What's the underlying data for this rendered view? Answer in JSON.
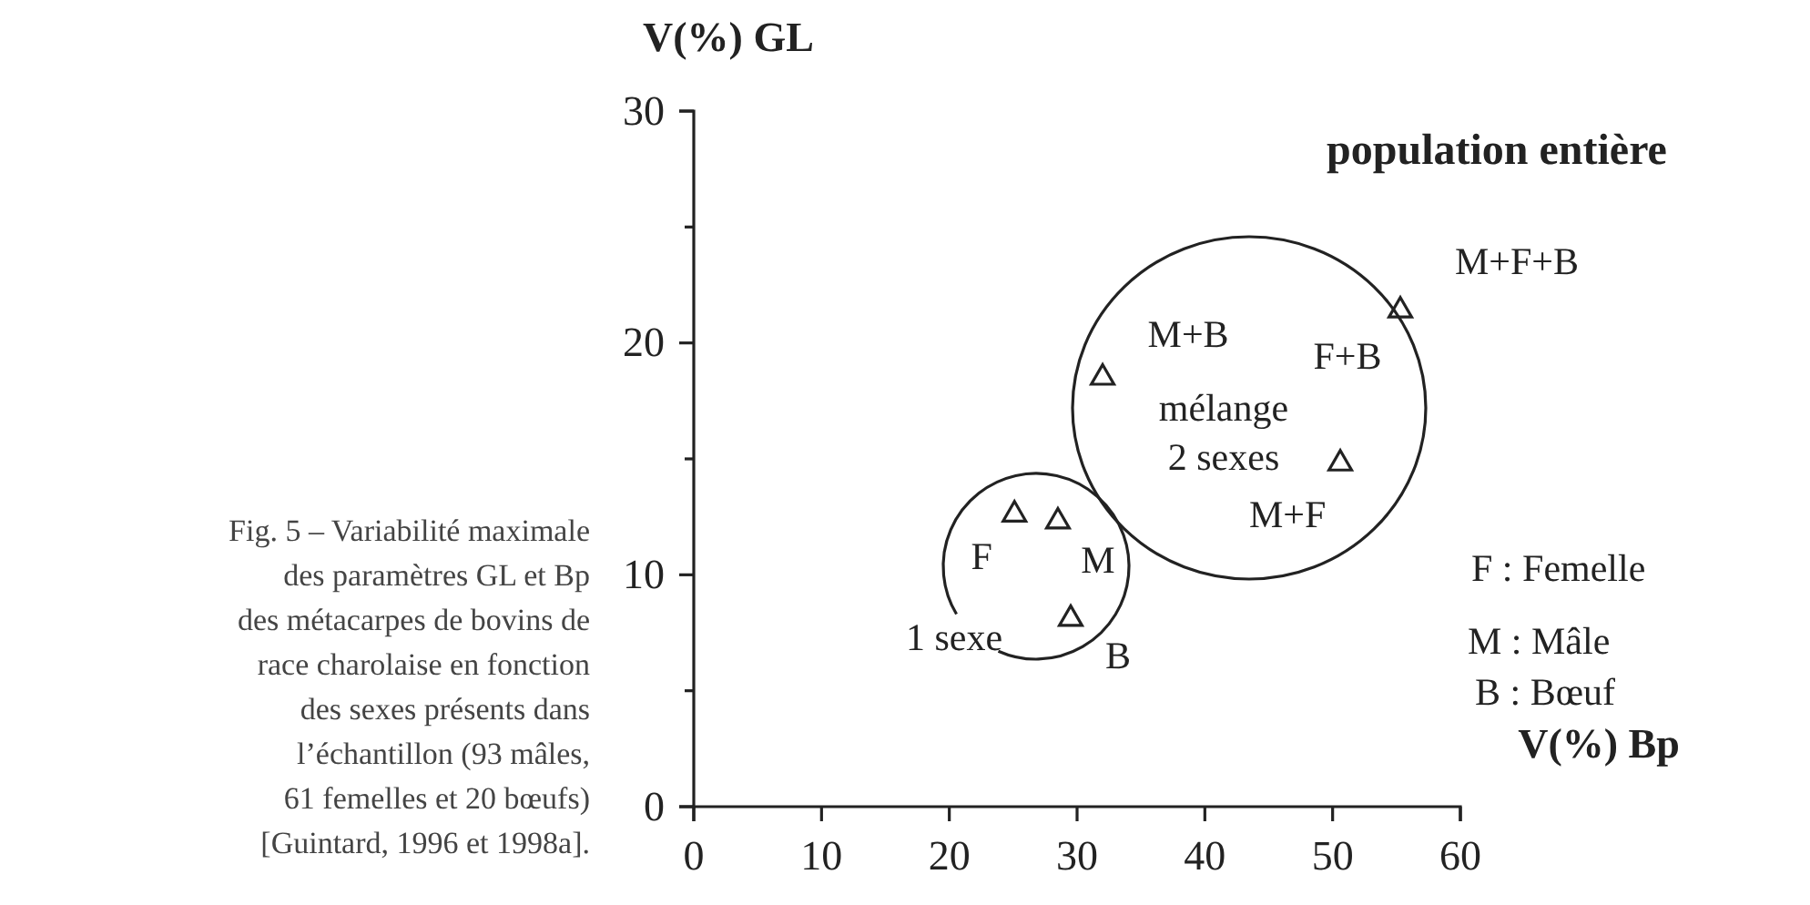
{
  "chart_data": {
    "type": "scatter",
    "xlabel": "V(%) Bp",
    "ylabel": "V(%) GL",
    "series": [
      {
        "color": "#222222",
        "x": [
          25.1,
          28.5,
          29.5,
          32.0,
          50.6,
          55.3
        ],
        "values": [
          12.6,
          12.3,
          8.1,
          18.5,
          14.8,
          21.4
        ]
      }
    ],
    "marker": "triangle",
    "grid": false,
    "xlim": [
      0,
      60
    ],
    "xticks": [
      0,
      10,
      20,
      30,
      40,
      50,
      60
    ],
    "ylim": [
      0,
      30
    ],
    "yticks": [
      0,
      {
        "value": 5,
        "label": null
      },
      10,
      {
        "value": 15,
        "label": null
      },
      20,
      {
        "value": 25,
        "label": null
      },
      30
    ],
    "annotations": [
      {
        "text": "F",
        "x": 25.1,
        "y": 12.6
      },
      {
        "text": "M",
        "x": 28.5,
        "y": 12.3
      },
      {
        "text": "B",
        "x": 29.5,
        "y": 8.1
      },
      {
        "text": "M+B",
        "x": 32.0,
        "y": 18.5
      },
      {
        "text": "M+F",
        "x": 50.6,
        "y": 14.8
      },
      {
        "text": "F+B",
        "x": 55.3,
        "y": 21.4
      },
      {
        "text": "M+F+B",
        "x": 55.3,
        "y": 21.4
      },
      "1 sexe",
      "mélange\n2 sexes",
      "population entière",
      "F : Femelle",
      "M : Mâle",
      "B : Bœuf",
      "Fig. 5 – Variabilité maximale\ndes paramètres GL et Bp\ndes métacarpes de bovins de\nrace charolaise en fonction\ndes sexes présents dans\nl’échantillon (93 mâles,\n61 femelles et 20 bœufs)\n[Guintard, 1996 et 1998a]."
    ]
  }
}
